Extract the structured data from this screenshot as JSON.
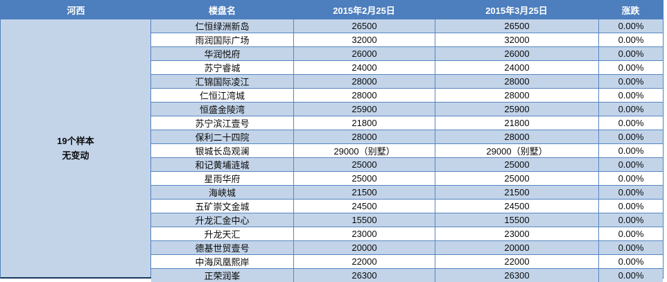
{
  "chart_data": {
    "type": "table",
    "region_header": "河西",
    "columns": [
      "楼盘名",
      "2015年2月25日",
      "2015年3月25日",
      "涨跌"
    ],
    "summary_line1": "19个样本",
    "summary_line2": "无变动",
    "rows": [
      {
        "name": "仁恒绿洲新岛",
        "feb": "26500",
        "mar": "26500",
        "change": "0.00%"
      },
      {
        "name": "雨润国际广场",
        "feb": "32000",
        "mar": "32000",
        "change": "0.00%"
      },
      {
        "name": "华润悦府",
        "feb": "26000",
        "mar": "26000",
        "change": "0.00%"
      },
      {
        "name": "苏宁睿城",
        "feb": "24000",
        "mar": "24000",
        "change": "0.00%"
      },
      {
        "name": "汇锦国际凌江",
        "feb": "28000",
        "mar": "28000",
        "change": "0.00%"
      },
      {
        "name": "仁恒江湾城",
        "feb": "28000",
        "mar": "28000",
        "change": "0.00%"
      },
      {
        "name": "恒盛金陵湾",
        "feb": "25900",
        "mar": "25900",
        "change": "0.00%"
      },
      {
        "name": "苏宁滨江壹号",
        "feb": "21800",
        "mar": "21800",
        "change": "0.00%"
      },
      {
        "name": "保利二十四院",
        "feb": "28000",
        "mar": "28000",
        "change": "0.00%"
      },
      {
        "name": "银城长岛观澜",
        "feb": "29000（别墅）",
        "mar": "29000（别墅）",
        "change": "0.00%"
      },
      {
        "name": "和记黄埔涟城",
        "feb": "25000",
        "mar": "25000",
        "change": "0.00%"
      },
      {
        "name": "星雨华府",
        "feb": "25000",
        "mar": "25000",
        "change": "0.00%"
      },
      {
        "name": "海峡城",
        "feb": "21500",
        "mar": "21500",
        "change": "0.00%"
      },
      {
        "name": "五矿崇文金城",
        "feb": "24500",
        "mar": "24500",
        "change": "0.00%"
      },
      {
        "name": "升龙汇金中心",
        "feb": "15500",
        "mar": "15500",
        "change": "0.00%"
      },
      {
        "name": "升龙天汇",
        "feb": "23000",
        "mar": "23000",
        "change": "0.00%"
      },
      {
        "name": "德基世贸壹号",
        "feb": "20000",
        "mar": "20000",
        "change": "0.00%"
      },
      {
        "name": "中海凤凰熙岸",
        "feb": "22000",
        "mar": "22000",
        "change": "0.00%"
      },
      {
        "name": "正荣润峯",
        "feb": "26300",
        "mar": "26300",
        "change": "0.00%"
      }
    ]
  },
  "colors": {
    "header_bg": "#4d7ebd",
    "alt_row_bg": "#c3d4e9",
    "grid_border": "#5585c0",
    "outer_border": "#4f81bd",
    "bottom_border": "#17375e",
    "header_text": "#ffffff",
    "cell_text": "#0a0a0a"
  }
}
